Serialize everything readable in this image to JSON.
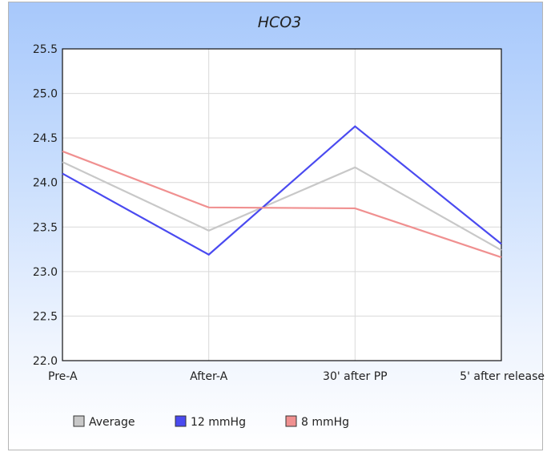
{
  "chart_data": {
    "type": "line",
    "title": "HCO3",
    "categories": [
      "Pre-A",
      "After-A",
      "30' after PP",
      "5' after release"
    ],
    "ylim": [
      22.0,
      25.5
    ],
    "yticks": [
      "22.0",
      "22.5",
      "23.0",
      "23.5",
      "24.0",
      "24.5",
      "25.0",
      "25.5"
    ],
    "grid": true,
    "legend_position": "bottom-left",
    "series": [
      {
        "name": "Average",
        "color": "#c8c8c8",
        "values": [
          24.23,
          23.46,
          24.17,
          23.24
        ]
      },
      {
        "name": "12 mmHg",
        "color": "#4a4af0",
        "values": [
          24.1,
          23.19,
          24.63,
          23.31
        ]
      },
      {
        "name": "8 mmHg",
        "color": "#f09090",
        "values": [
          24.35,
          23.72,
          23.71,
          23.16
        ]
      }
    ]
  }
}
